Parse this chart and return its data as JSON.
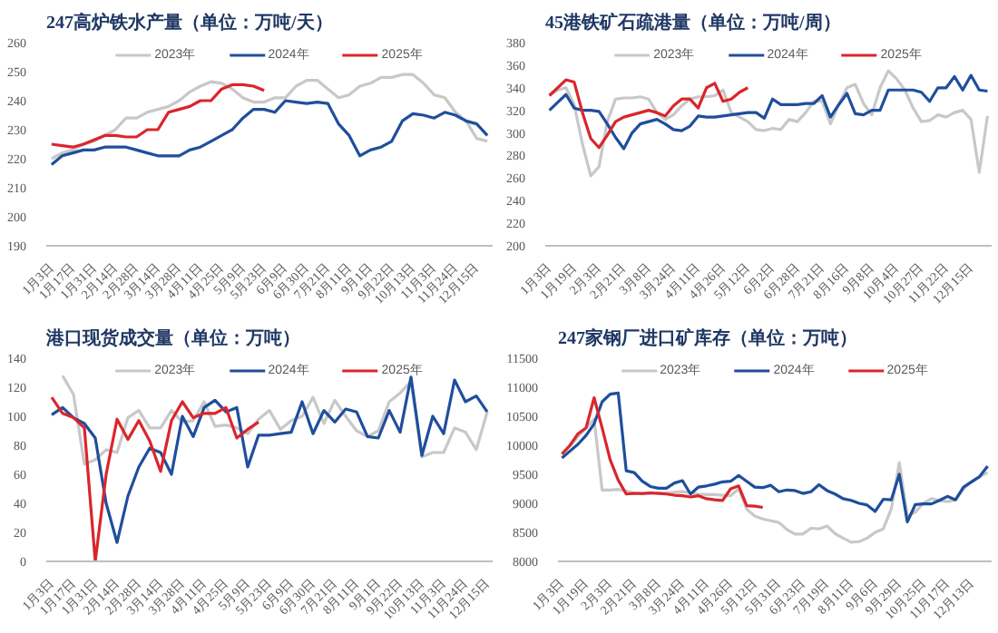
{
  "chart_data": [
    {
      "type": "line",
      "title": "247高炉铁水产量（单位：万吨/天）",
      "categories": [
        "1月3日",
        null,
        "1月17日",
        null,
        "1月31日",
        null,
        "2月14日",
        null,
        "2月28日",
        null,
        "3月14日",
        null,
        "3月28日",
        null,
        "4月11日",
        null,
        "4月25日",
        null,
        "5月9日",
        null,
        "5月23日",
        null,
        "6月9日",
        null,
        "6月30日",
        null,
        "7月21日",
        null,
        "8月11日",
        null,
        "9月1日",
        null,
        "9月22日",
        null,
        "10月13日",
        null,
        "11月3日",
        null,
        "11月24日",
        null,
        "12月15日",
        null
      ],
      "ylim": [
        190,
        260
      ],
      "yticks": [
        190,
        200,
        210,
        220,
        230,
        240,
        250,
        260
      ],
      "grid": false,
      "legend": "top",
      "line_style": "solid",
      "marker": "none",
      "series": [
        {
          "name": "2023年",
          "color": "#c8c8c8",
          "values": [
            220,
            222,
            223,
            225,
            226,
            228,
            230,
            234,
            234,
            236,
            237,
            238,
            240,
            243,
            245,
            246.5,
            246,
            244,
            241,
            239.5,
            239.5,
            241,
            241,
            245,
            247,
            247,
            244,
            241,
            242,
            245,
            246,
            248,
            248,
            249,
            249,
            246,
            242,
            241,
            236,
            233,
            227,
            226
          ]
        },
        {
          "name": "2024年",
          "color": "#1f4e9c",
          "values": [
            218,
            221,
            222,
            223,
            223,
            224,
            224,
            224,
            223,
            222,
            221,
            221,
            221,
            223,
            224,
            226,
            228,
            230,
            234,
            237,
            237,
            236,
            240,
            239.5,
            239,
            239.5,
            239,
            232,
            228,
            221,
            223,
            224,
            226,
            233,
            235.5,
            235,
            234,
            236,
            235,
            233,
            232,
            228
          ]
        },
        {
          "name": "2025年",
          "color": "#d9262c",
          "values": [
            225,
            224.5,
            224,
            225,
            226.5,
            228,
            228,
            227.5,
            227.5,
            230,
            230,
            236,
            237,
            238,
            240,
            240,
            244,
            245.5,
            245.5,
            245,
            243.5,
            null,
            null,
            null,
            null,
            null,
            null,
            null,
            null,
            null,
            null,
            null,
            null,
            null,
            null,
            null,
            null,
            null,
            null,
            null,
            null,
            null
          ]
        }
      ]
    },
    {
      "type": "line",
      "title": "45港铁矿石疏港量（单位：万吨/周）",
      "categories": [
        "1月3日",
        null,
        null,
        "1月19日",
        null,
        null,
        "2月3日",
        null,
        null,
        "2月21日",
        null,
        null,
        "3月8日",
        null,
        null,
        "3月24日",
        null,
        null,
        "4月11日",
        null,
        null,
        "4月26日",
        null,
        null,
        "5月12日",
        null,
        null,
        "6月2日",
        null,
        null,
        "6月28日",
        null,
        null,
        "7月21日",
        null,
        null,
        "8月16日",
        null,
        null,
        "9月8日",
        null,
        null,
        "10月4日",
        null,
        null,
        "10月27日",
        null,
        null,
        "11月22日",
        null,
        null,
        "12月15日",
        null,
        null
      ],
      "ylim": [
        200,
        380
      ],
      "yticks": [
        200,
        220,
        240,
        260,
        280,
        300,
        320,
        340,
        360,
        380
      ],
      "grid": false,
      "legend": "top",
      "line_style": "solid",
      "marker": "none",
      "series": [
        {
          "name": "2023年",
          "color": "#c8c8c8",
          "values": [
            334,
            338,
            340,
            325,
            290,
            262,
            270,
            310,
            330,
            331,
            331,
            332,
            330,
            318,
            312,
            316,
            324,
            330,
            332,
            332,
            333,
            338,
            318,
            314,
            310,
            303,
            302,
            304,
            303,
            312,
            310,
            318,
            328,
            328,
            308,
            325,
            340,
            343,
            326,
            316,
            340,
            355,
            348,
            338,
            322,
            310,
            311,
            316,
            314,
            318,
            320,
            312,
            265,
            315
          ]
        },
        {
          "name": "2024年",
          "color": "#1f4e9c",
          "values": [
            320,
            327,
            334,
            322,
            320,
            320,
            319,
            308,
            296,
            286,
            300,
            308,
            310,
            312,
            308,
            303,
            302,
            306,
            315,
            314,
            314,
            315,
            316,
            317,
            318,
            318,
            313,
            330,
            325,
            325,
            325,
            326,
            326,
            333,
            314,
            325,
            335,
            317,
            316,
            320,
            320,
            338,
            338,
            338,
            338,
            336,
            328,
            340,
            340,
            350,
            338,
            351,
            338,
            337
          ]
        },
        {
          "name": "2025年",
          "color": "#d9262c",
          "values": [
            333,
            340,
            347,
            345,
            318,
            295,
            287,
            298,
            310,
            314,
            316,
            318,
            320,
            318,
            315,
            324,
            330,
            330,
            322,
            340,
            344,
            328,
            330,
            336,
            340,
            null,
            null,
            null,
            null,
            null,
            null,
            null,
            null,
            null,
            null,
            null,
            null,
            null,
            null,
            null,
            null,
            null,
            null,
            null,
            null,
            null,
            null,
            null,
            null,
            null,
            null,
            null,
            null,
            null
          ]
        }
      ]
    },
    {
      "type": "line",
      "title": "港口现货成交量（单位：万吨）",
      "categories": [
        "1月3日",
        null,
        "1月17日",
        null,
        "1月31日",
        null,
        "2月14日",
        null,
        "2月28日",
        null,
        "3月14日",
        null,
        "3月28日",
        null,
        "4月11日",
        null,
        "4月25日",
        null,
        "5月9日",
        null,
        "5月23日",
        null,
        "6月9日",
        null,
        "6月30日",
        null,
        "7月21日",
        null,
        "8月11日",
        null,
        "9月1日",
        null,
        "9月22日",
        null,
        "10月13日",
        null,
        "11月3日",
        null,
        "11月24日",
        null,
        "12月15日"
      ],
      "ylim": [
        0,
        140
      ],
      "yticks": [
        0,
        20,
        40,
        60,
        80,
        100,
        120,
        140
      ],
      "grid": false,
      "legend": "top",
      "line_style": "solid",
      "marker": "none",
      "series": [
        {
          "name": "2023年",
          "color": "#c8c8c8",
          "values": [
            null,
            128,
            115,
            67,
            70,
            77,
            75,
            99,
            104,
            92,
            92,
            104,
            96,
            97,
            110,
            93,
            94,
            92,
            88,
            98,
            104,
            91,
            97,
            100,
            113,
            95,
            111,
            100,
            90,
            86,
            90,
            110,
            116,
            124,
            72,
            75,
            75,
            92,
            89,
            77,
            103
          ]
        },
        {
          "name": "2024年",
          "color": "#1f4e9c",
          "values": [
            101,
            106,
            99,
            95,
            85,
            40,
            13,
            45,
            65,
            78,
            75,
            60,
            100,
            86,
            106,
            111,
            103,
            106,
            65,
            87,
            87,
            88,
            89,
            110,
            88,
            104,
            96,
            105,
            103,
            86,
            85,
            104,
            89,
            127,
            73,
            100,
            88,
            125,
            110,
            114,
            103
          ]
        },
        {
          "name": "2025年",
          "color": "#d9262c",
          "values": [
            113,
            102,
            99,
            92,
            0,
            60,
            98,
            84,
            97,
            83,
            62,
            97,
            110,
            99,
            102,
            102,
            106,
            85,
            91,
            96,
            null,
            null,
            null,
            null,
            null,
            null,
            null,
            null,
            null,
            null,
            null,
            null,
            null,
            null,
            null,
            null,
            null,
            null,
            null,
            null,
            null
          ]
        }
      ]
    },
    {
      "type": "line",
      "title": "247家钢厂进口矿库存（单位：万吨）",
      "categories": [
        "1月3日",
        null,
        null,
        "1月19日",
        null,
        null,
        "2月3日",
        null,
        null,
        "2月21日",
        null,
        null,
        "3月8日",
        null,
        null,
        "3月24日",
        null,
        null,
        "4月11日",
        null,
        null,
        "4月26日",
        null,
        null,
        "5月12日",
        null,
        null,
        "5月31日",
        null,
        null,
        "6月23日",
        null,
        null,
        "7月19日",
        null,
        null,
        "8月11日",
        null,
        null,
        "9月6日",
        null,
        null,
        "9月29日",
        null,
        null,
        "10月25日",
        null,
        null,
        "11月17日",
        null,
        null,
        "12月13日",
        null,
        null
      ],
      "ylim": [
        8000,
        11500
      ],
      "yticks": [
        8000,
        8500,
        9000,
        9500,
        10000,
        10500,
        11000,
        11500
      ],
      "grid": false,
      "legend": "top",
      "line_style": "solid",
      "marker": "none",
      "series": [
        {
          "name": "2023年",
          "color": "#c8c8c8",
          "values": [
            9850,
            9990,
            10150,
            10300,
            10450,
            9230,
            9230,
            9240,
            9210,
            9180,
            9160,
            9170,
            9180,
            9180,
            9190,
            9200,
            9180,
            9160,
            9150,
            9150,
            9140,
            9130,
            9250,
            8900,
            8780,
            8730,
            8700,
            8670,
            8550,
            8470,
            8470,
            8570,
            8560,
            8610,
            8480,
            8400,
            8330,
            8340,
            8400,
            8500,
            8560,
            8900,
            9700,
            8780,
            8850,
            9000,
            9080,
            9050,
            9030,
            9060,
            9250,
            9380,
            9460,
            9530
          ]
        },
        {
          "name": "2024年",
          "color": "#1f4e9c",
          "values": [
            9780,
            9900,
            10020,
            10170,
            10370,
            10750,
            10880,
            10900,
            9560,
            9530,
            9380,
            9290,
            9260,
            9260,
            9350,
            9390,
            9160,
            9280,
            9300,
            9330,
            9370,
            9380,
            9480,
            9380,
            9280,
            9270,
            9310,
            9200,
            9230,
            9220,
            9170,
            9200,
            9320,
            9220,
            9160,
            9080,
            9050,
            9000,
            8970,
            8860,
            9070,
            9060,
            9500,
            8680,
            8980,
            8990,
            8990,
            9050,
            9120,
            9060,
            9280,
            9370,
            9460,
            9640
          ]
        },
        {
          "name": "2025年",
          "color": "#d9262c",
          "values": [
            9850,
            10000,
            10200,
            10300,
            10820,
            10300,
            9750,
            9400,
            9160,
            9170,
            9170,
            9180,
            9170,
            9160,
            9140,
            9130,
            9110,
            9130,
            9080,
            9060,
            9050,
            9250,
            9300,
            8960,
            8950,
            8930,
            null,
            null,
            null,
            null,
            null,
            null,
            null,
            null,
            null,
            null,
            null,
            null,
            null,
            null,
            null,
            null,
            null,
            null,
            null,
            null,
            null,
            null,
            null,
            null,
            null,
            null,
            null,
            null
          ]
        }
      ]
    }
  ]
}
